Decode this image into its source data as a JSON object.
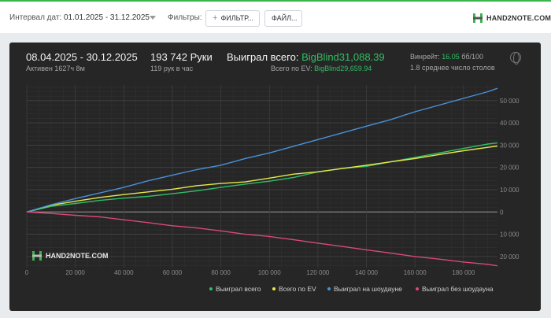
{
  "toolbar": {
    "interval_label": "Интервал дат:",
    "interval_value": "01.01.2025 - 31.12.2025",
    "filters_label": "Фильтры:",
    "filter_button": "ФИЛЬТР...",
    "file_button": "ФАЙЛ...",
    "logo_text": "HAND2NOTE.COM"
  },
  "stats": {
    "period": "08.04.2025 - 30.12.2025",
    "active": "Активен 1627ч 8м",
    "hands": "193 742 Руки",
    "hands_per_hour": "119 рук в час",
    "won_label": "Выиграл всего:",
    "won_value": "BigBlind31,088.39",
    "ev_label": "Всего по EV:",
    "ev_value": "BigBlind29,659.94",
    "winrate_label": "Винрейт:",
    "winrate_value": "16.05",
    "winrate_unit": "бб/100",
    "tables": "1.8 среднее число столов"
  },
  "watermark": "HAND2NOTE.COM",
  "colors": {
    "won": "#2fbf63",
    "ev": "#e8e84a",
    "showdown": "#4a90d9",
    "no_showdown": "#d9487a",
    "accent": "#3ab54a"
  },
  "chart_data": {
    "type": "line",
    "xlim": [
      0,
      194000
    ],
    "ylim": [
      -25000,
      57000
    ],
    "x_ticks": [
      0,
      20000,
      40000,
      60000,
      80000,
      100000,
      120000,
      140000,
      160000,
      180000
    ],
    "x_tick_labels": [
      "0",
      "20 000",
      "40 000",
      "60 000",
      "80 000",
      "100 000",
      "120 000",
      "140 000",
      "160 000",
      "180 000"
    ],
    "y_ticks": [
      50000,
      40000,
      30000,
      20000,
      10000,
      0,
      -10000,
      -20000
    ],
    "y_tick_labels": [
      "50 000",
      "40 000",
      "30 000",
      "20 000",
      "10 000",
      "0",
      "10 000",
      "20 000"
    ],
    "grid": true,
    "legend_position": "bottom-right",
    "x": [
      0,
      10000,
      20000,
      30000,
      40000,
      50000,
      60000,
      70000,
      80000,
      90000,
      100000,
      110000,
      120000,
      130000,
      140000,
      150000,
      160000,
      170000,
      180000,
      190000,
      194000
    ],
    "series": [
      {
        "name": "Выиграл всего",
        "color_key": "won",
        "values": [
          0,
          2500,
          3800,
          5200,
          6200,
          7000,
          8200,
          9500,
          11000,
          12500,
          13800,
          15500,
          18000,
          19500,
          20500,
          22500,
          24500,
          26500,
          28500,
          30500,
          31000
        ]
      },
      {
        "name": "Всего по EV",
        "color_key": "ev",
        "values": [
          0,
          3000,
          4800,
          6500,
          7800,
          9000,
          10200,
          11800,
          12800,
          13500,
          15200,
          17000,
          18000,
          19500,
          21000,
          22500,
          24000,
          25800,
          27500,
          29000,
          29600
        ]
      },
      {
        "name": "Выиграл на шоудауне",
        "color_key": "showdown",
        "values": [
          0,
          3200,
          6000,
          8500,
          11000,
          14000,
          16500,
          19000,
          21000,
          24000,
          26500,
          29500,
          32500,
          35500,
          38500,
          41500,
          45000,
          48000,
          51000,
          54000,
          55500
        ]
      },
      {
        "name": "Выиграл без шоудауна",
        "color_key": "no_showdown",
        "values": [
          0,
          -700,
          -1500,
          -2200,
          -3500,
          -4800,
          -6200,
          -7200,
          -8500,
          -10000,
          -11000,
          -12500,
          -14000,
          -15500,
          -17000,
          -18500,
          -20000,
          -21200,
          -22500,
          -23500,
          -24200
        ]
      }
    ]
  }
}
